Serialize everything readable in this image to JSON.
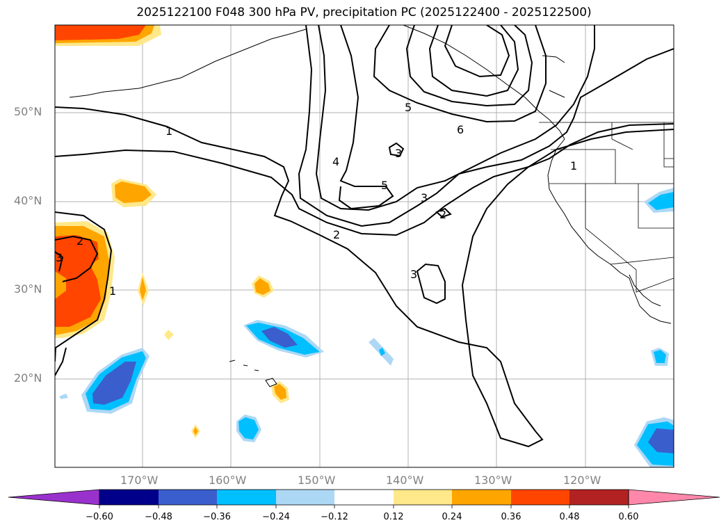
{
  "title": "2025122100 F048 300 hPa PV, precipitation PC (2025122400 - 2025122500)",
  "lat_labels": [
    "50°N",
    "40°N",
    "30°N",
    "20°N"
  ],
  "lon_labels": [
    "170°W",
    "160°W",
    "150°W",
    "140°W",
    "130°W",
    "120°W"
  ],
  "contour_labels": [
    "1",
    "1",
    "2",
    "2",
    "2",
    "3",
    "3",
    "3",
    "3",
    "4",
    "5",
    "5",
    "6",
    "1"
  ],
  "colorbar": {
    "ticks": [
      "−0.60",
      "−0.48",
      "−0.36",
      "−0.24",
      "−0.12",
      "0.12",
      "0.24",
      "0.36",
      "0.48",
      "0.60"
    ],
    "colors": [
      "#9932cc",
      "#00008b",
      "#3a5fcd",
      "#00bfff",
      "#add8f5",
      "#ffffff",
      "#ffe88a",
      "#ffa500",
      "#ff4500",
      "#b22222",
      "#ff88aa"
    ]
  },
  "chart_data": {
    "type": "map",
    "variable": "300 hPa PV (contours) and precipitation PC (shaded)",
    "lon_range": [
      -180,
      -110
    ],
    "lat_range": [
      10,
      60
    ],
    "contour_levels": [
      1,
      2,
      3,
      4,
      5,
      6
    ],
    "shading_levels": [
      -0.6,
      -0.48,
      -0.36,
      -0.24,
      -0.12,
      0.12,
      0.24,
      0.36,
      0.48,
      0.6
    ]
  }
}
